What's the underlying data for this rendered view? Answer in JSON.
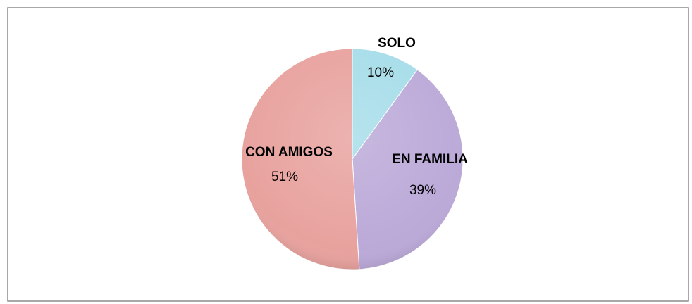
{
  "chart_data": {
    "type": "pie",
    "categories": [
      "SOLO",
      "EN FAMILIA",
      "CON AMIGOS"
    ],
    "values": [
      10,
      39,
      51
    ],
    "value_labels": [
      "10%",
      "39%",
      "51%"
    ],
    "colors": [
      "#a6dde9",
      "#bba9d8",
      "#e8a29e"
    ]
  }
}
